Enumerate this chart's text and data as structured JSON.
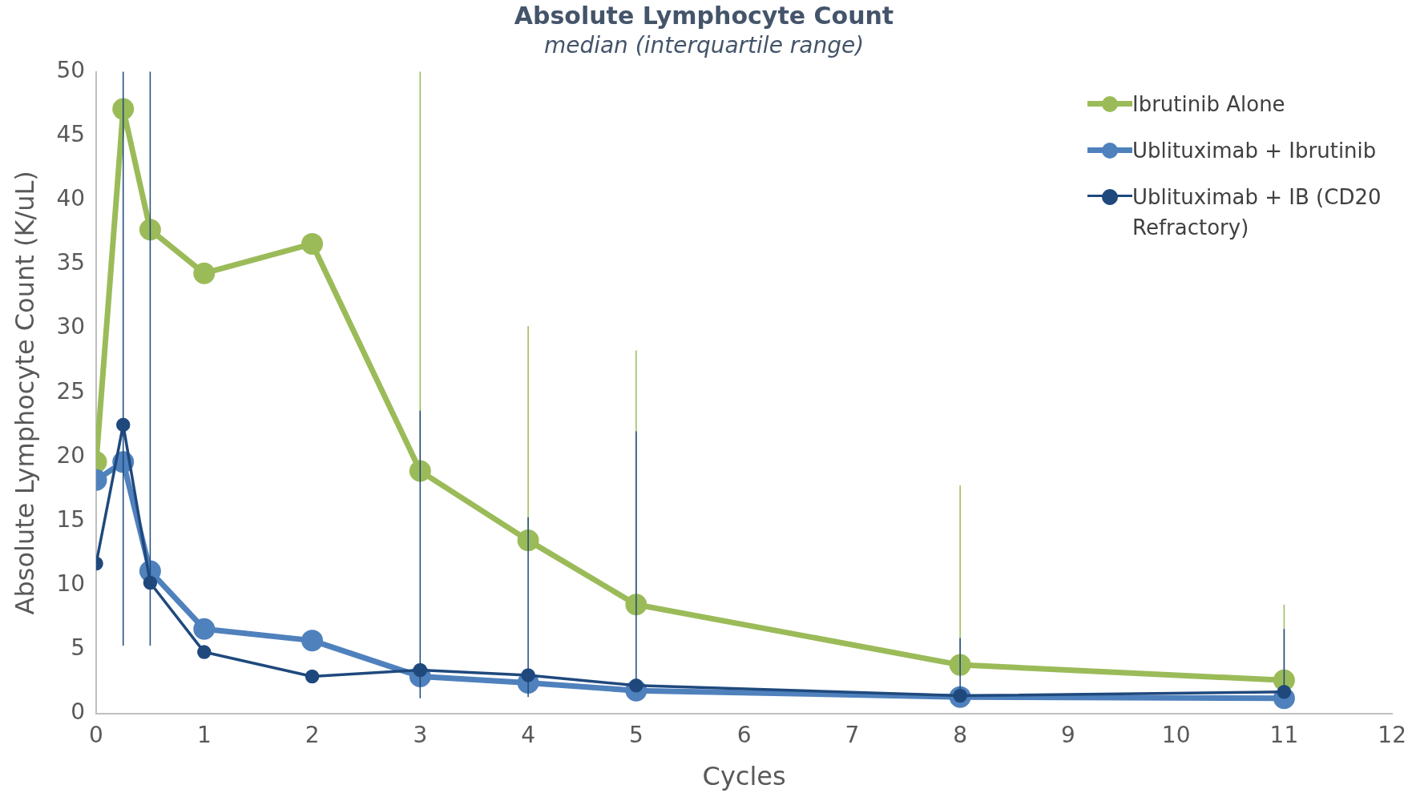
{
  "chart_data": {
    "type": "line",
    "title": "Absolute Lymphocyte Count",
    "subtitle": "median (interquartile range)",
    "xlabel": "Cycles",
    "ylabel": "Absolute Lymphocyte Count (K/uL)",
    "x": [
      0,
      0.25,
      0.5,
      1,
      2,
      3,
      4,
      5,
      8,
      11
    ],
    "series": [
      {
        "name": "Ibrutinib Alone",
        "color": "#9bbb59",
        "values": [
          19.6,
          47.1,
          37.7,
          34.3,
          36.6,
          18.9,
          13.5,
          8.5,
          3.8,
          2.6
        ],
        "errors": [
          null,
          null,
          null,
          null,
          null,
          [
            18.9,
            50
          ],
          [
            13.5,
            30.2
          ],
          [
            8.5,
            28.3
          ],
          [
            3.8,
            17.8
          ],
          [
            2.6,
            8.5
          ]
        ]
      },
      {
        "name": "Ublituximab + Ibrutinib",
        "color": "#4f81bd",
        "values": [
          18.2,
          19.6,
          11.1,
          6.6,
          5.7,
          2.9,
          2.4,
          1.8,
          1.3,
          1.2
        ]
      },
      {
        "name": "Ublituximab + IB (CD20 Refractory)",
        "color": "#1f497d",
        "values": [
          11.7,
          22.5,
          10.2,
          4.8,
          2.9,
          3.4,
          3.0,
          2.2,
          1.4,
          1.7
        ],
        "errors": [
          null,
          [
            5.3,
            50
          ],
          [
            5.3,
            50
          ],
          null,
          null,
          [
            1.2,
            23.6
          ],
          [
            1.3,
            15.3
          ],
          [
            2.2,
            22.0
          ],
          [
            1.4,
            5.9
          ],
          [
            1.7,
            6.6
          ]
        ]
      }
    ],
    "xlim": [
      0,
      12
    ],
    "xticks": [
      0,
      1,
      2,
      3,
      4,
      5,
      6,
      7,
      8,
      9,
      10,
      11,
      12
    ],
    "ylim": [
      0,
      50
    ],
    "yticks": [
      0,
      5,
      10,
      15,
      20,
      25,
      30,
      35,
      40,
      45,
      50
    ],
    "grid": false,
    "legend": "top right",
    "marker": "circle",
    "line_style": "solid"
  }
}
